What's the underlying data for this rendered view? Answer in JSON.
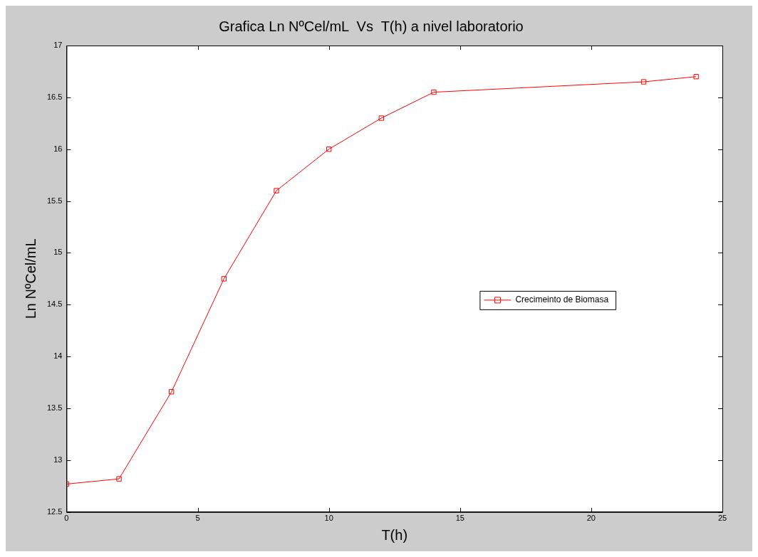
{
  "chart_data": {
    "type": "line",
    "title": "Grafica Ln NºCel/mL  Vs  T(h) a nivel laboratorio",
    "xlabel": "T(h)",
    "ylabel": "Ln NºCel/mL",
    "x": [
      0,
      2,
      4,
      6,
      8,
      10,
      12,
      14,
      22,
      24
    ],
    "series": [
      {
        "name": "Crecimeinto de Biomasa",
        "color": "#ff0000",
        "values": [
          12.77,
          12.82,
          13.66,
          14.75,
          15.6,
          16.0,
          16.3,
          16.55,
          16.65,
          16.7
        ]
      }
    ],
    "xlim": [
      0,
      25
    ],
    "xticks": [
      0,
      5,
      10,
      15,
      20,
      25
    ],
    "ylim": [
      12.5,
      17
    ],
    "yticks": [
      12.5,
      13,
      13.5,
      14,
      14.5,
      15,
      15.5,
      16,
      16.5,
      17
    ],
    "grid": false,
    "legend": "right",
    "marker": "square",
    "line_style": "solid"
  }
}
